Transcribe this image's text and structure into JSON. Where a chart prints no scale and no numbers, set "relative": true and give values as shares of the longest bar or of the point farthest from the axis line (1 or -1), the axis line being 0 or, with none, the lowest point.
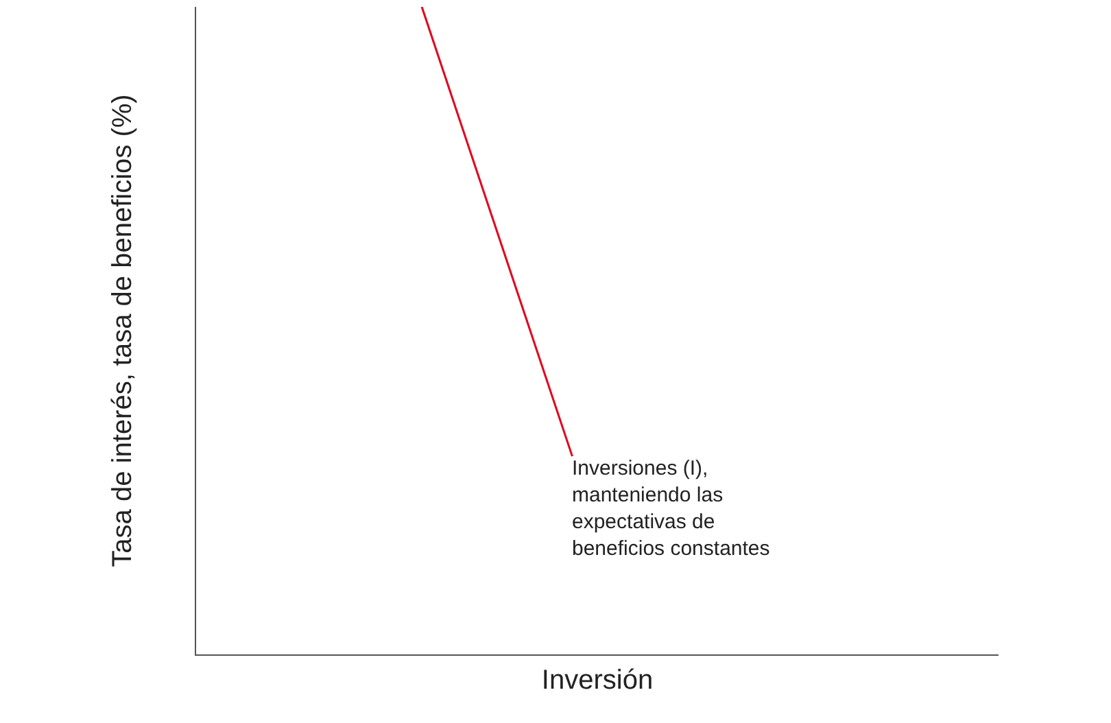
{
  "chart_data": {
    "type": "line",
    "relative": true,
    "xlabel": "Inversión",
    "ylabel": "Tasa de interés, tasa de beneficios (%)",
    "categories": [
      null,
      null,
      null,
      null,
      null,
      null,
      null,
      null,
      null,
      null,
      null,
      null,
      null,
      null,
      null,
      null
    ],
    "series": [
      {
        "color": "#e3001b",
        "values": [
          null,
          null,
          null,
          null,
          1,
          null,
          null,
          0.306,
          null,
          null,
          null,
          null,
          null,
          null,
          null,
          null
        ]
      }
    ],
    "annotations": [
      "Inversiones (I),\nmanteniendo las\nexpectativas de\nbeneficios constantes"
    ],
    "legend": false,
    "marker": "none",
    "line_style": "solid"
  }
}
